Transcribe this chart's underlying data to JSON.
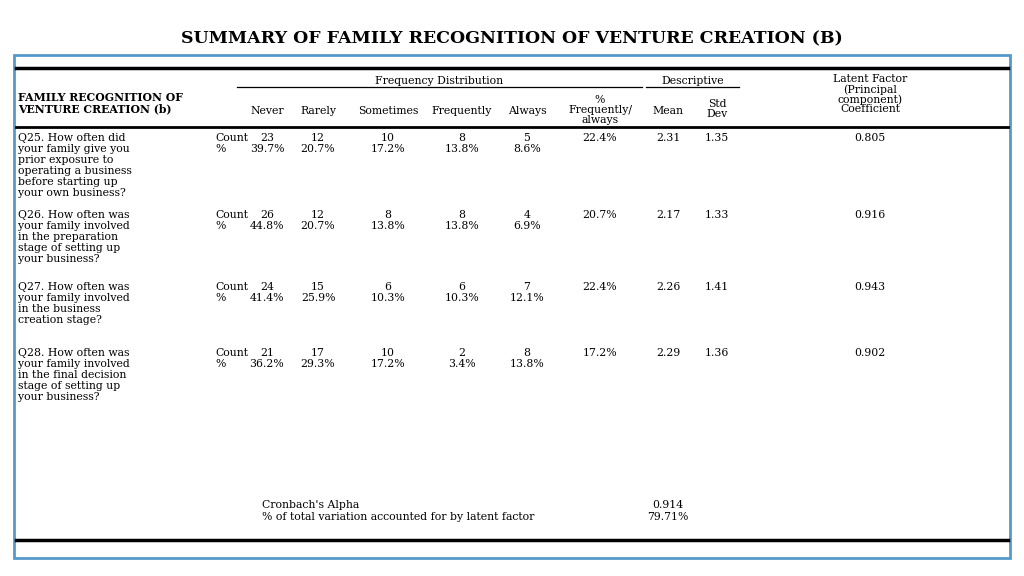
{
  "title": "SUMMARY OF FAMILY RECOGNITION OF VENTURE CREATION (B)",
  "title_fontsize": 12.5,
  "background_color": "#ffffff",
  "border_color": "#5599cc",
  "rows": [
    {
      "question": [
        "Q25. How often did",
        "your family give you",
        "prior exposure to",
        "operating a business",
        "before starting up",
        "your own business?"
      ],
      "never_c": "23",
      "never_p": "39.7%",
      "rarely_c": "12",
      "rarely_p": "20.7%",
      "sometimes_c": "10",
      "sometimes_p": "17.2%",
      "frequently_c": "8",
      "frequently_p": "13.8%",
      "always_c": "5",
      "always_p": "8.6%",
      "freq_always": "22.4%",
      "mean": "2.31",
      "std": "1.35",
      "latent": "0.805"
    },
    {
      "question": [
        "Q26. How often was",
        "your family involved",
        "in the preparation",
        "stage of setting up",
        "your business?"
      ],
      "never_c": "26",
      "never_p": "44.8%",
      "rarely_c": "12",
      "rarely_p": "20.7%",
      "sometimes_c": "8",
      "sometimes_p": "13.8%",
      "frequently_c": "8",
      "frequently_p": "13.8%",
      "always_c": "4",
      "always_p": "6.9%",
      "freq_always": "20.7%",
      "mean": "2.17",
      "std": "1.33",
      "latent": "0.916"
    },
    {
      "question": [
        "Q27. How often was",
        "your family involved",
        "in the business",
        "creation stage?"
      ],
      "never_c": "24",
      "never_p": "41.4%",
      "rarely_c": "15",
      "rarely_p": "25.9%",
      "sometimes_c": "6",
      "sometimes_p": "10.3%",
      "frequently_c": "6",
      "frequently_p": "10.3%",
      "always_c": "7",
      "always_p": "12.1%",
      "freq_always": "22.4%",
      "mean": "2.26",
      "std": "1.41",
      "latent": "0.943"
    },
    {
      "question": [
        "Q28. How often was",
        "your family involved",
        "in the final decision",
        "stage of setting up",
        "your business?"
      ],
      "never_c": "21",
      "never_p": "36.2%",
      "rarely_c": "17",
      "rarely_p": "29.3%",
      "sometimes_c": "10",
      "sometimes_p": "17.2%",
      "frequently_c": "2",
      "frequently_p": "3.4%",
      "always_c": "8",
      "always_p": "13.8%",
      "freq_always": "17.2%",
      "mean": "2.29",
      "std": "1.36",
      "latent": "0.902"
    }
  ],
  "footer_label1": "Cronbach's Alpha",
  "footer_value1": "0.914",
  "footer_label2": "% of total variation accounted for by latent factor",
  "footer_value2": "79.71%"
}
